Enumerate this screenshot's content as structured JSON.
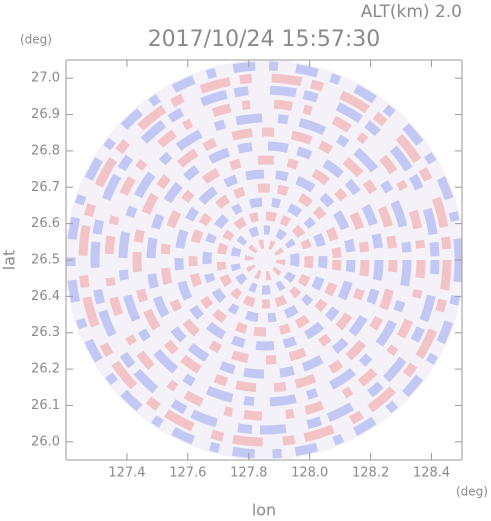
{
  "chart_data": {
    "type": "radar",
    "title": "2017/10/24 15:57:30",
    "annotation": "ALT(km) 2.0",
    "xlabel": "lon",
    "ylabel": "lat",
    "xunit": "(deg)",
    "yunit": "(deg)",
    "xlim": [
      127.2,
      128.5
    ],
    "ylim": [
      25.95,
      27.05
    ],
    "xticks": [
      127.4,
      127.6,
      127.8,
      {
        "value": 128.0,
        "label": "128.0"
      },
      128.2,
      128.4
    ],
    "yticks": [
      {
        "value": 26.0,
        "label": "26.0"
      },
      26.1,
      26.2,
      26.3,
      26.4,
      26.5,
      26.6,
      26.7,
      26.8,
      26.9,
      {
        "value": 27.0,
        "label": "27.0"
      }
    ]
  }
}
